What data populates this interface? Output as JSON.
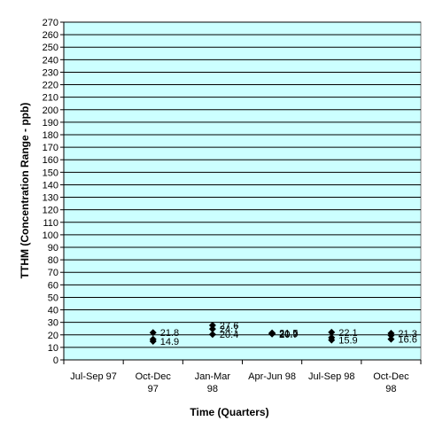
{
  "chart_data": {
    "type": "scatter",
    "xlabel": "Time (Quarters)",
    "ylabel": "TTHM (Concentration Range - ppb)",
    "ylim": [
      0,
      270
    ],
    "ystep": 10,
    "grid": true,
    "plot_background": "#ccffff",
    "marker_color": "#000000",
    "categories": [
      [
        "Jul-Sep 97"
      ],
      [
        "Oct-Dec",
        "97"
      ],
      [
        "Jan-Mar",
        "98"
      ],
      [
        "Apr-Jun 98"
      ],
      [
        "Jul-Sep 98"
      ],
      [
        "Oct-Dec",
        "98"
      ]
    ],
    "points": [
      {
        "category_index": 1,
        "values": [
          21.8,
          16.5,
          14.9
        ],
        "labels": [
          "21.8",
          "",
          "14.9"
        ]
      },
      {
        "category_index": 2,
        "values": [
          27.6,
          24.7,
          20.4
        ],
        "labels": [
          "27.6",
          "24.7",
          "20.4"
        ]
      },
      {
        "category_index": 3,
        "values": [
          21.5,
          20.9,
          20.7
        ],
        "labels": [
          "21.5",
          "20.9",
          "20.7"
        ]
      },
      {
        "category_index": 4,
        "values": [
          22.1,
          17.8,
          15.9
        ],
        "labels": [
          "22.1",
          "",
          "15.9"
        ]
      },
      {
        "category_index": 5,
        "values": [
          21.3,
          19.6,
          16.6
        ],
        "labels": [
          "21.3",
          "",
          "16.6"
        ]
      }
    ]
  }
}
